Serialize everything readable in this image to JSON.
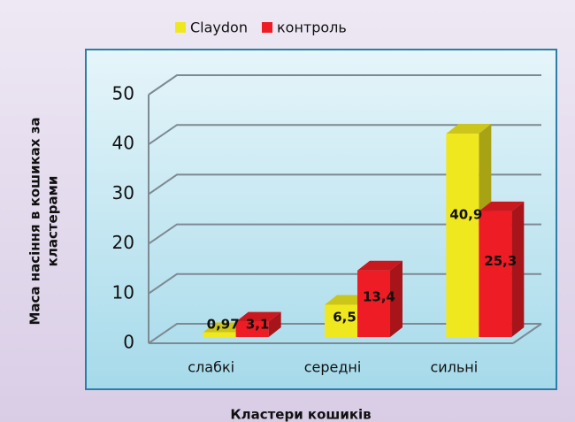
{
  "chart_data": {
    "type": "bar3d",
    "categories": [
      "слабкі",
      "середні",
      "сильні"
    ],
    "series": [
      {
        "name": "Claydon",
        "color": "#f0e81e",
        "values": [
          0.97,
          6.5,
          40.9
        ],
        "value_labels": [
          "0,97",
          "6,5",
          "40,9"
        ]
      },
      {
        "name": "контроль",
        "color": "#ee1c24",
        "values": [
          3.1,
          13.4,
          25.3
        ],
        "value_labels": [
          "3,1",
          "13,4",
          "25,3"
        ]
      }
    ],
    "ylim": [
      0,
      50
    ],
    "yticks": [
      0,
      10,
      20,
      30,
      40,
      50
    ],
    "grid": true,
    "y_label": [
      "Маса насіння в кошиках за",
      "кластерами"
    ],
    "x_label": "Кластери кошиків",
    "legend": "top"
  }
}
